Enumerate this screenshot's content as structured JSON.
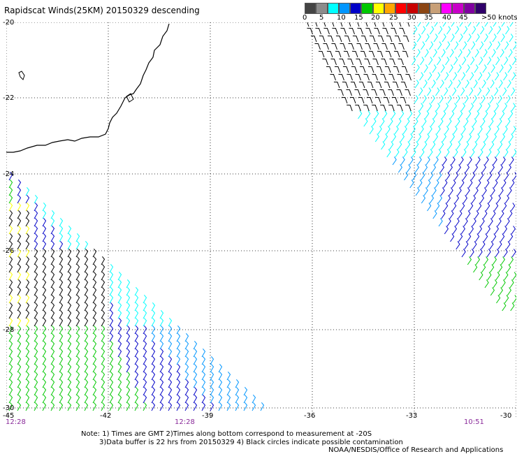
{
  "title": "Rapidscat Winds(25KM) 20150329 descending",
  "speed_scale": {
    "labels": [
      "0",
      "5",
      "10",
      "15",
      "20",
      "25",
      "30",
      "35",
      "40",
      "45",
      ">50 knots"
    ],
    "colors": [
      "#444444",
      "#8c8c8c",
      "#00ffff",
      "#0096ff",
      "#0000c8",
      "#00c800",
      "#ffff00",
      "#ffa500",
      "#ff0000",
      "#c80000",
      "#8b4513",
      "#c8a078",
      "#ff00ff",
      "#c800c8",
      "#8000a0",
      "#30006a"
    ]
  },
  "map": {
    "lat_labels": [
      "-20",
      "-22",
      "-24",
      "-26",
      "-28",
      "-30"
    ],
    "lon_labels": [
      "-45",
      "-42",
      "-39",
      "-36",
      "-33",
      "-30"
    ],
    "time_labels": [
      "12:28",
      "12:28",
      "10:51"
    ]
  },
  "notes": {
    "line1": "Note: 1) Times are GMT 2)Times along bottom correspond to measurement at -20S",
    "line2": "3)Data buffer is 22 hrs from 20150329 4) Black circles indicate possible contamination",
    "line3": "NOAA/NESDIS/Office of Research and Applications"
  }
}
